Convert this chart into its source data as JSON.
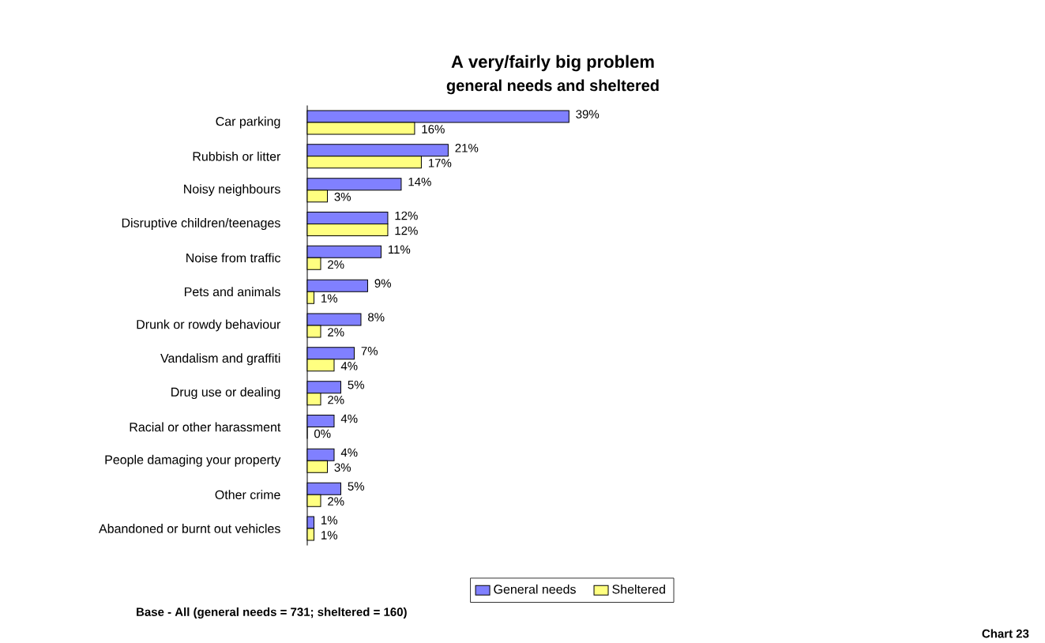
{
  "chart_data": {
    "type": "bar",
    "orientation": "horizontal",
    "title": "A very/fairly big problem",
    "subtitle": "general needs and sheltered",
    "categories": [
      "Car parking",
      "Rubbish or litter",
      "Noisy neighbours",
      "Disruptive children/teenages",
      "Noise from traffic",
      "Pets and animals",
      "Drunk or rowdy behaviour",
      "Vandalism and graffiti",
      "Drug use or dealing",
      "Racial or other harassment",
      "People damaging your property",
      "Other crime",
      "Abandoned or burnt out vehicles"
    ],
    "series": [
      {
        "name": "General needs",
        "color": "#8080ff",
        "values": [
          39,
          21,
          14,
          12,
          11,
          9,
          8,
          7,
          5,
          4,
          4,
          5,
          1
        ],
        "value_labels": [
          "39%",
          "21%",
          "14%",
          "12%",
          "11%",
          "9%",
          "8%",
          "7%",
          "5%",
          "4%",
          "4%",
          "5%",
          "1%"
        ]
      },
      {
        "name": "Sheltered",
        "color": "#ffff80",
        "values": [
          16,
          17,
          3,
          12,
          2,
          1,
          2,
          4,
          2,
          0,
          3,
          2,
          1
        ],
        "value_labels": [
          "16%",
          "17%",
          "3%",
          "12%",
          "2%",
          "1%",
          "2%",
          "4%",
          "2%",
          "0%",
          "3%",
          "2%",
          "1%"
        ]
      }
    ],
    "legend": "bottom",
    "annotations": [
      "Base - All (general needs    = 731; sheltered = 160)",
      "Chart 23"
    ]
  }
}
